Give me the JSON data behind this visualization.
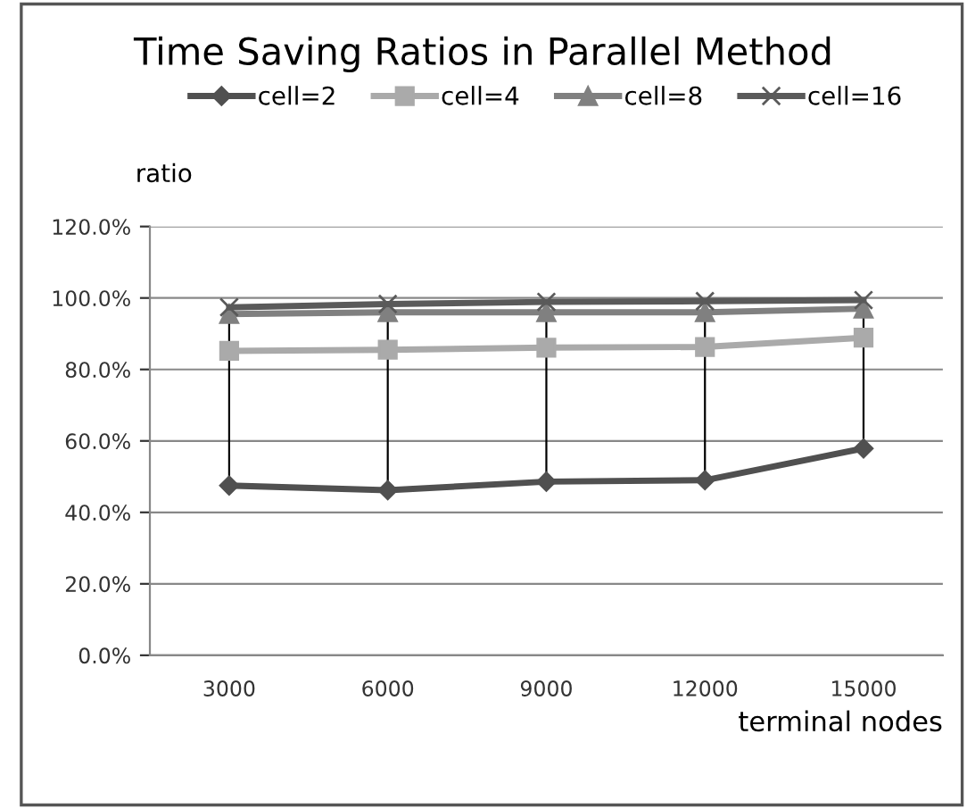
{
  "chart_data": {
    "type": "line",
    "title": "Time Saving Ratios in Parallel Method",
    "xlabel": "terminal nodes",
    "ylabel": "ratio",
    "categories": [
      "3000",
      "6000",
      "9000",
      "12000",
      "15000"
    ],
    "series": [
      {
        "name": "cell=2",
        "color": "#505050",
        "marker": "diamond",
        "values": [
          47.5,
          46.2,
          48.6,
          49.0,
          57.9
        ],
        "errors": [
          [
            47.5,
            97.4
          ],
          [
            46.2,
            98.3
          ],
          [
            48.6,
            98.9
          ],
          [
            49.0,
            99.1
          ],
          [
            57.9,
            99.4
          ]
        ]
      },
      {
        "name": "cell=4",
        "color": "#aaaaaa",
        "marker": "square",
        "values": [
          85.2,
          85.5,
          86.1,
          86.3,
          88.9
        ]
      },
      {
        "name": "cell=8",
        "color": "#808080",
        "marker": "triangle",
        "values": [
          95.5,
          96.0,
          96.0,
          96.0,
          97.0
        ]
      },
      {
        "name": "cell=16",
        "color": "#5a5a5a",
        "marker": "cross",
        "values": [
          97.4,
          98.3,
          98.9,
          99.1,
          99.4
        ]
      }
    ],
    "ylim": [
      0,
      120
    ],
    "yticks": [
      {
        "value": 0,
        "label": "0.0%"
      },
      {
        "value": 20,
        "label": "20.0%"
      },
      {
        "value": 40,
        "label": "40.0%"
      },
      {
        "value": 60,
        "label": "60.0%"
      },
      {
        "value": 80,
        "label": "80.0%"
      },
      {
        "value": 100,
        "label": "100.0%"
      },
      {
        "value": 120,
        "label": "120.0%"
      }
    ],
    "grid": "y",
    "legend": "top"
  }
}
